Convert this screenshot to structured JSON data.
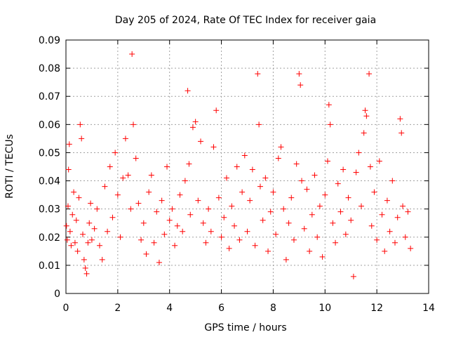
{
  "chart_data": {
    "type": "scatter",
    "title": "Day 205 of 2024, Rate Of TEC Index for receiver gaia",
    "xlabel": "GPS time / hours",
    "ylabel": "ROTI / TECUs",
    "xlim": [
      0,
      14
    ],
    "ylim": [
      0,
      0.09
    ],
    "xticks": [
      0,
      2,
      4,
      6,
      8,
      10,
      12,
      14
    ],
    "yticks": [
      0,
      0.01,
      0.02,
      0.03,
      0.04,
      0.05,
      0.06,
      0.07,
      0.08,
      0.09
    ],
    "xtick_labels": [
      "0",
      "2",
      "4",
      "6",
      "8",
      "10",
      "12",
      "14"
    ],
    "ytick_labels": [
      "0",
      "0.01",
      "0.02",
      "0.03",
      "0.04",
      "0.05",
      "0.06",
      "0.07",
      "0.08",
      "0.09"
    ],
    "grid": true,
    "marker": "+",
    "color": "#ff0000",
    "series": [
      {
        "name": "ROTI",
        "points": [
          [
            0.02,
            0.024
          ],
          [
            0.05,
            0.019
          ],
          [
            0.08,
            0.031
          ],
          [
            0.1,
            0.044
          ],
          [
            0.13,
            0.053
          ],
          [
            0.16,
            0.022
          ],
          [
            0.2,
            0.017
          ],
          [
            0.25,
            0.028
          ],
          [
            0.3,
            0.036
          ],
          [
            0.35,
            0.018
          ],
          [
            0.4,
            0.026
          ],
          [
            0.45,
            0.015
          ],
          [
            0.5,
            0.034
          ],
          [
            0.55,
            0.06
          ],
          [
            0.6,
            0.055
          ],
          [
            0.65,
            0.021
          ],
          [
            0.7,
            0.012
          ],
          [
            0.75,
            0.009
          ],
          [
            0.8,
            0.007
          ],
          [
            0.85,
            0.018
          ],
          [
            0.9,
            0.025
          ],
          [
            0.95,
            0.032
          ],
          [
            1.0,
            0.019
          ],
          [
            1.1,
            0.023
          ],
          [
            1.2,
            0.03
          ],
          [
            1.3,
            0.017
          ],
          [
            1.4,
            0.012
          ],
          [
            1.5,
            0.038
          ],
          [
            1.6,
            0.022
          ],
          [
            1.7,
            0.045
          ],
          [
            1.8,
            0.027
          ],
          [
            1.9,
            0.05
          ],
          [
            2.0,
            0.035
          ],
          [
            2.1,
            0.02
          ],
          [
            2.2,
            0.041
          ],
          [
            2.3,
            0.055
          ],
          [
            2.4,
            0.042
          ],
          [
            2.5,
            0.03
          ],
          [
            2.55,
            0.085
          ],
          [
            2.6,
            0.06
          ],
          [
            2.7,
            0.048
          ],
          [
            2.8,
            0.032
          ],
          [
            2.9,
            0.019
          ],
          [
            3.0,
            0.025
          ],
          [
            3.1,
            0.014
          ],
          [
            3.2,
            0.036
          ],
          [
            3.3,
            0.042
          ],
          [
            3.4,
            0.018
          ],
          [
            3.5,
            0.029
          ],
          [
            3.6,
            0.011
          ],
          [
            3.7,
            0.033
          ],
          [
            3.8,
            0.021
          ],
          [
            3.9,
            0.045
          ],
          [
            4.0,
            0.026
          ],
          [
            4.1,
            0.03
          ],
          [
            4.2,
            0.017
          ],
          [
            4.3,
            0.024
          ],
          [
            4.4,
            0.035
          ],
          [
            4.5,
            0.022
          ],
          [
            4.6,
            0.04
          ],
          [
            4.7,
            0.072
          ],
          [
            4.75,
            0.046
          ],
          [
            4.8,
            0.028
          ],
          [
            4.9,
            0.059
          ],
          [
            5.0,
            0.061
          ],
          [
            5.1,
            0.033
          ],
          [
            5.2,
            0.054
          ],
          [
            5.3,
            0.025
          ],
          [
            5.4,
            0.018
          ],
          [
            5.5,
            0.03
          ],
          [
            5.6,
            0.022
          ],
          [
            5.7,
            0.052
          ],
          [
            5.8,
            0.065
          ],
          [
            5.9,
            0.034
          ],
          [
            6.0,
            0.02
          ],
          [
            6.1,
            0.027
          ],
          [
            6.2,
            0.041
          ],
          [
            6.3,
            0.016
          ],
          [
            6.4,
            0.031
          ],
          [
            6.5,
            0.024
          ],
          [
            6.6,
            0.045
          ],
          [
            6.7,
            0.019
          ],
          [
            6.8,
            0.036
          ],
          [
            6.9,
            0.049
          ],
          [
            7.0,
            0.022
          ],
          [
            7.1,
            0.033
          ],
          [
            7.2,
            0.044
          ],
          [
            7.3,
            0.017
          ],
          [
            7.4,
            0.078
          ],
          [
            7.45,
            0.06
          ],
          [
            7.5,
            0.038
          ],
          [
            7.6,
            0.026
          ],
          [
            7.7,
            0.041
          ],
          [
            7.8,
            0.015
          ],
          [
            7.9,
            0.029
          ],
          [
            8.0,
            0.036
          ],
          [
            8.1,
            0.021
          ],
          [
            8.2,
            0.048
          ],
          [
            8.3,
            0.052
          ],
          [
            8.4,
            0.03
          ],
          [
            8.5,
            0.012
          ],
          [
            8.6,
            0.025
          ],
          [
            8.7,
            0.034
          ],
          [
            8.8,
            0.019
          ],
          [
            8.9,
            0.046
          ],
          [
            9.0,
            0.078
          ],
          [
            9.05,
            0.074
          ],
          [
            9.1,
            0.04
          ],
          [
            9.2,
            0.023
          ],
          [
            9.3,
            0.037
          ],
          [
            9.4,
            0.015
          ],
          [
            9.5,
            0.028
          ],
          [
            9.6,
            0.042
          ],
          [
            9.7,
            0.02
          ],
          [
            9.8,
            0.031
          ],
          [
            9.9,
            0.013
          ],
          [
            10.0,
            0.035
          ],
          [
            10.1,
            0.047
          ],
          [
            10.15,
            0.067
          ],
          [
            10.2,
            0.06
          ],
          [
            10.3,
            0.025
          ],
          [
            10.4,
            0.018
          ],
          [
            10.5,
            0.039
          ],
          [
            10.6,
            0.029
          ],
          [
            10.7,
            0.044
          ],
          [
            10.8,
            0.021
          ],
          [
            10.9,
            0.034
          ],
          [
            11.0,
            0.026
          ],
          [
            11.1,
            0.006
          ],
          [
            11.2,
            0.043
          ],
          [
            11.3,
            0.05
          ],
          [
            11.4,
            0.031
          ],
          [
            11.5,
            0.057
          ],
          [
            11.55,
            0.065
          ],
          [
            11.6,
            0.063
          ],
          [
            11.7,
            0.078
          ],
          [
            11.75,
            0.045
          ],
          [
            11.8,
            0.024
          ],
          [
            11.9,
            0.036
          ],
          [
            12.0,
            0.019
          ],
          [
            12.1,
            0.047
          ],
          [
            12.2,
            0.028
          ],
          [
            12.3,
            0.015
          ],
          [
            12.4,
            0.033
          ],
          [
            12.5,
            0.022
          ],
          [
            12.6,
            0.04
          ],
          [
            12.7,
            0.018
          ],
          [
            12.8,
            0.027
          ],
          [
            12.9,
            0.062
          ],
          [
            12.95,
            0.057
          ],
          [
            13.0,
            0.031
          ],
          [
            13.1,
            0.02
          ],
          [
            13.2,
            0.029
          ],
          [
            13.3,
            0.016
          ]
        ]
      }
    ]
  }
}
